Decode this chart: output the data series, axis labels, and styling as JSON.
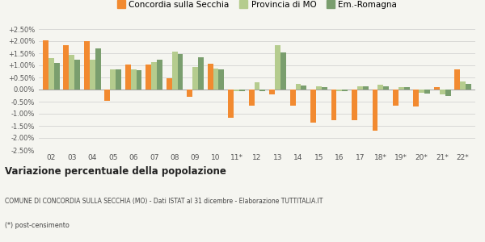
{
  "years": [
    "02",
    "03",
    "04",
    "05",
    "06",
    "07",
    "08",
    "09",
    "10",
    "11*",
    "12",
    "13",
    "14",
    "15",
    "16",
    "17",
    "18*",
    "19*",
    "20*",
    "21*",
    "22*"
  ],
  "concordia": [
    2.05,
    1.85,
    2.0,
    -0.48,
    1.05,
    1.05,
    0.48,
    -0.3,
    1.08,
    -1.18,
    -0.68,
    -0.2,
    -0.65,
    -1.38,
    -1.28,
    -1.28,
    -1.7,
    -0.65,
    -0.7,
    0.1,
    0.85
  ],
  "provincia": [
    1.3,
    1.45,
    1.22,
    0.85,
    0.85,
    1.15,
    1.58,
    0.92,
    0.88,
    -0.05,
    0.3,
    1.82,
    0.22,
    0.15,
    -0.05,
    0.15,
    0.2,
    0.1,
    -0.12,
    -0.2,
    0.32
  ],
  "emilia": [
    1.1,
    1.22,
    1.7,
    0.85,
    0.8,
    1.25,
    1.48,
    1.32,
    0.82,
    -0.05,
    -0.05,
    1.55,
    0.18,
    0.1,
    -0.08,
    0.12,
    0.15,
    0.1,
    -0.15,
    -0.28,
    0.25
  ],
  "color_concordia": "#f28a30",
  "color_provincia": "#b5cc8e",
  "color_emilia": "#7a9e6e",
  "title": "Variazione percentuale della popolazione",
  "subtitle": "COMUNE DI CONCORDIA SULLA SECCHIA (MO) - Dati ISTAT al 31 dicembre - Elaborazione TUTTITALIA.IT",
  "footnote": "(*) post-censimento",
  "legend_labels": [
    "Concordia sulla Secchia",
    "Provincia di MO",
    "Em.-Romagna"
  ],
  "ylim": [
    -2.5,
    2.5
  ],
  "yticks": [
    -2.5,
    -2.0,
    -1.5,
    -1.0,
    -0.5,
    0.0,
    0.5,
    1.0,
    1.5,
    2.0,
    2.5
  ],
  "ytick_labels": [
    "-2.50%",
    "-2.00%",
    "-1.50%",
    "-1.00%",
    "-0.50%",
    "0.00%",
    "+0.50%",
    "+1.00%",
    "+1.50%",
    "+2.00%",
    "+2.50%"
  ],
  "bg_color": "#f5f5f0",
  "bar_width": 0.27
}
